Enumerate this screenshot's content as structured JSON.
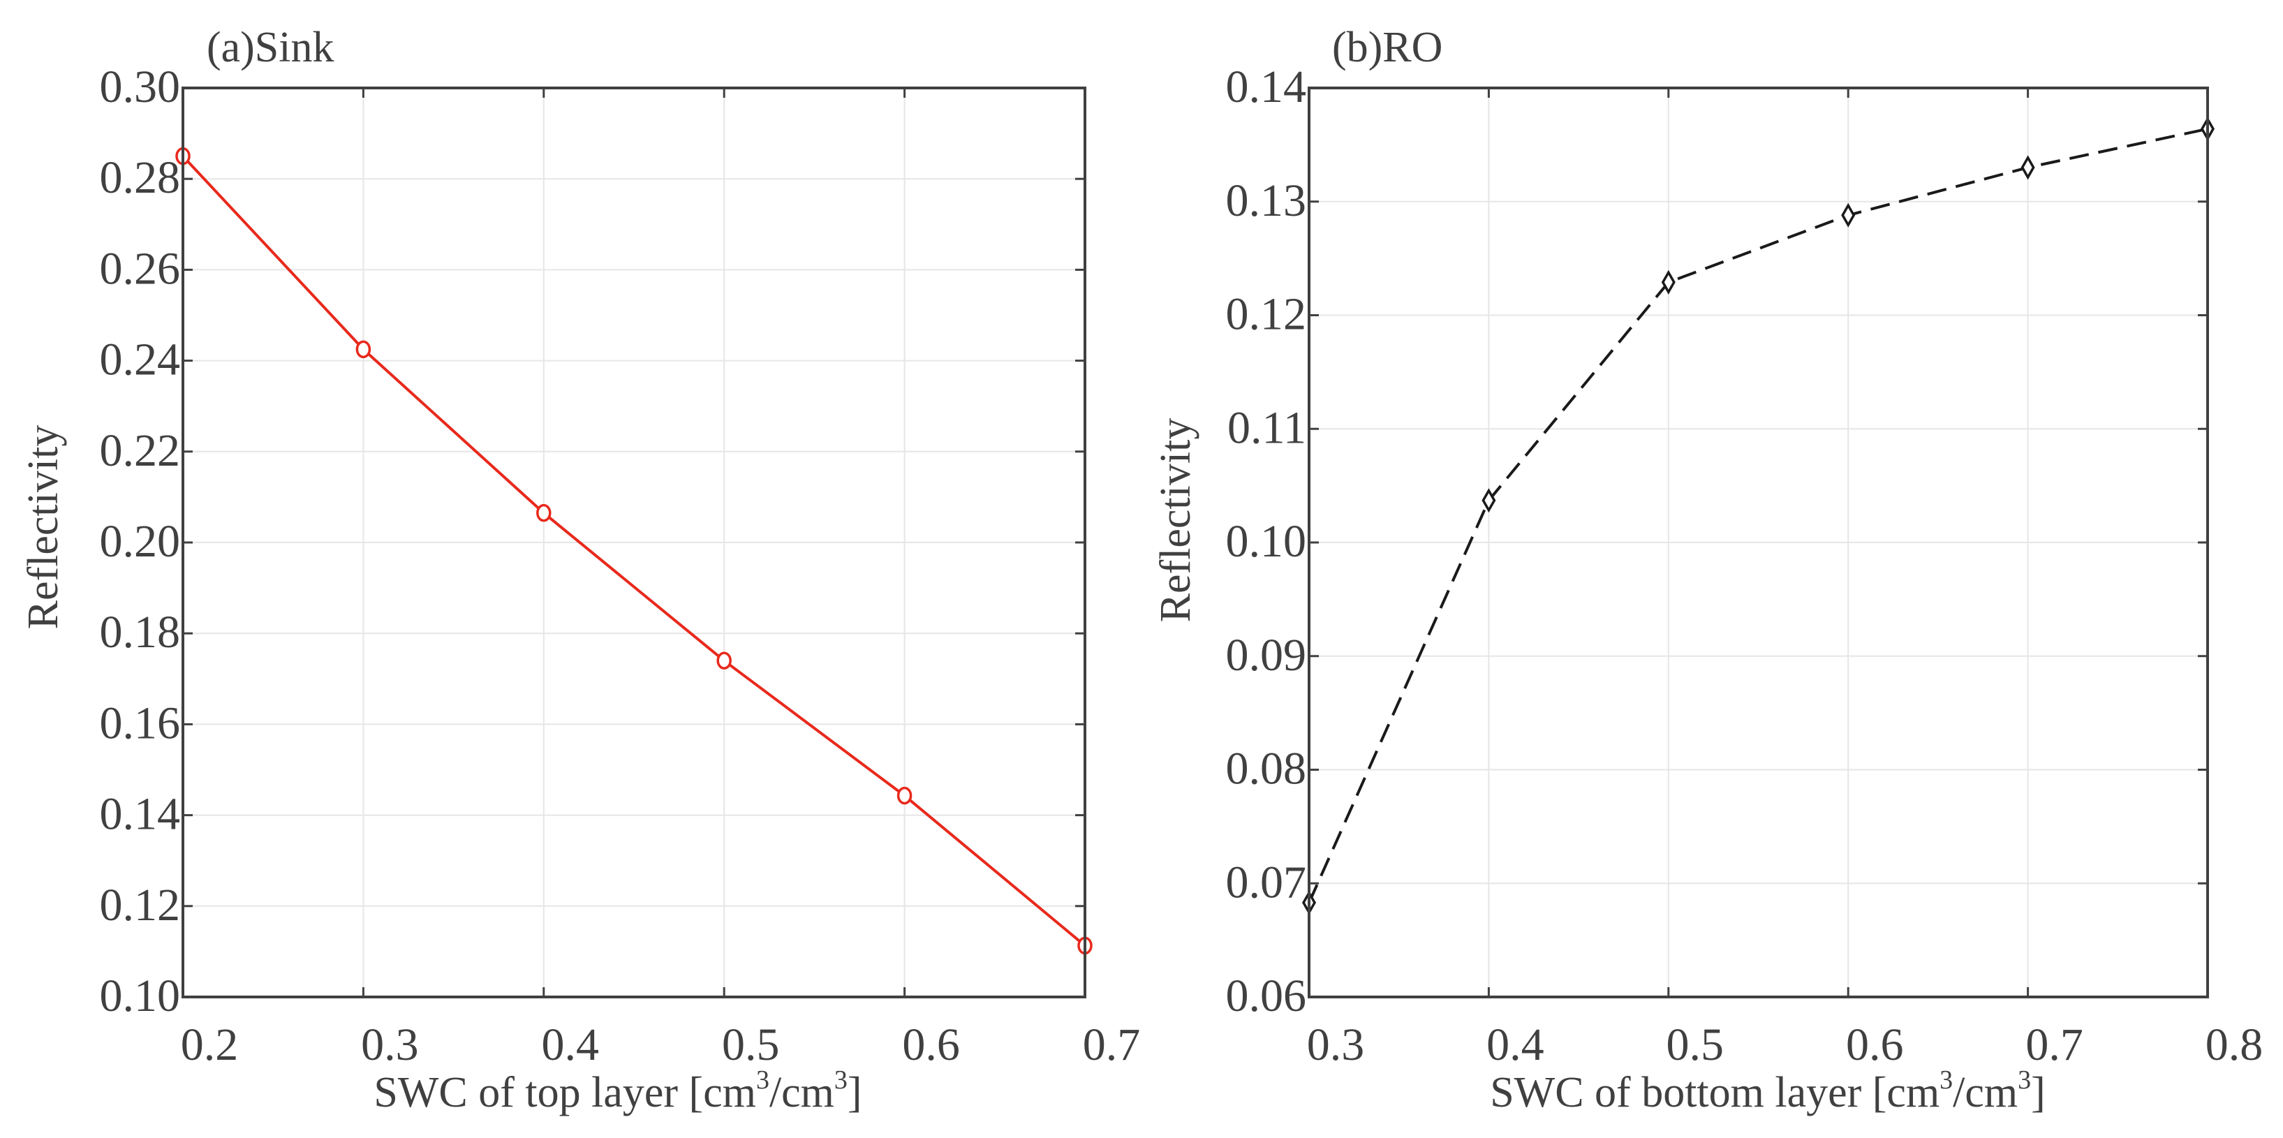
{
  "colors": {
    "background": "#ffffff",
    "axis": "#404040",
    "grid": "#e6e6e6",
    "series_a": "#e8291c",
    "series_b": "#1a1a1a"
  },
  "chart_data": [
    {
      "type": "line",
      "title": "(a)Sink",
      "xlabel_main": "SWC of top layer [cm",
      "xlabel_sup1": "3",
      "xlabel_mid": "/cm",
      "xlabel_sup2": "3",
      "xlabel_end": "]",
      "ylabel": "Reflectivity",
      "xlim": [
        0.2,
        0.7
      ],
      "ylim": [
        0.1,
        0.3
      ],
      "xticks": [
        "0.2",
        "0.3",
        "0.4",
        "0.5",
        "0.6",
        "0.7"
      ],
      "yticks": [
        "0.10",
        "0.12",
        "0.14",
        "0.16",
        "0.18",
        "0.20",
        "0.22",
        "0.24",
        "0.26",
        "0.28",
        "0.30"
      ],
      "grid": true,
      "series": [
        {
          "name": "Sink",
          "marker": "circle",
          "line_style": "solid",
          "x": [
            0.2,
            0.3,
            0.4,
            0.5,
            0.6,
            0.7
          ],
          "y": [
            0.285,
            0.2425,
            0.2065,
            0.174,
            0.1443,
            0.1113
          ]
        }
      ]
    },
    {
      "type": "line",
      "title": "(b)RO",
      "xlabel_main": "SWC of bottom layer [cm",
      "xlabel_sup1": "3",
      "xlabel_mid": "/cm",
      "xlabel_sup2": "3",
      "xlabel_end": "]",
      "ylabel": "Reflectivity",
      "xlim": [
        0.3,
        0.8
      ],
      "ylim": [
        0.06,
        0.14
      ],
      "xticks": [
        "0.3",
        "0.4",
        "0.5",
        "0.6",
        "0.7",
        "0.8"
      ],
      "yticks": [
        "0.06",
        "0.07",
        "0.08",
        "0.09",
        "0.10",
        "0.11",
        "0.12",
        "0.13",
        "0.14"
      ],
      "grid": true,
      "series": [
        {
          "name": "RO",
          "marker": "diamond",
          "line_style": "dashed",
          "x": [
            0.3,
            0.4,
            0.5,
            0.6,
            0.7,
            0.8
          ],
          "y": [
            0.0683,
            0.1037,
            0.1229,
            0.1288,
            0.133,
            0.1364
          ]
        }
      ]
    }
  ]
}
